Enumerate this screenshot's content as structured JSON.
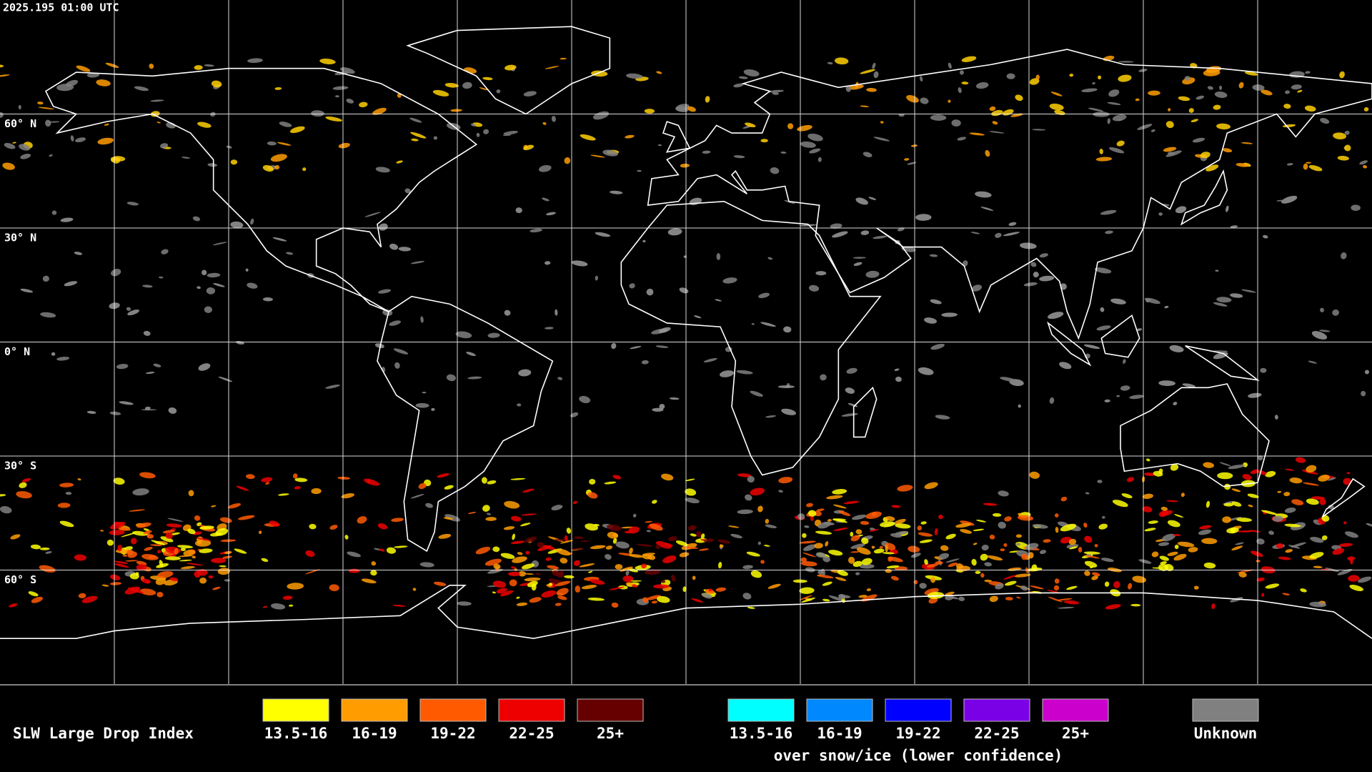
{
  "header": {
    "timestamp": "2025.195 01:00 UTC"
  },
  "map": {
    "latitude_labels": [
      "60° N",
      "30° N",
      "0° N",
      "30° S",
      "60° S"
    ]
  },
  "legend": {
    "title": "SLW Large Drop Index",
    "groups": [
      {
        "items": [
          {
            "label": "13.5-16",
            "color": "#ffff00"
          },
          {
            "label": "16-19",
            "color": "#ff9c00"
          },
          {
            "label": "19-22",
            "color": "#ff5a00"
          },
          {
            "label": "22-25",
            "color": "#ee0000"
          },
          {
            "label": "25+",
            "color": "#660000"
          }
        ]
      },
      {
        "items": [
          {
            "label": "13.5-16",
            "color": "#00ffff"
          },
          {
            "label": "16-19",
            "color": "#0088ff"
          },
          {
            "label": "19-22",
            "color": "#0000ff"
          },
          {
            "label": "22-25",
            "color": "#7a00e6"
          },
          {
            "label": "25+",
            "color": "#cc00cc"
          }
        ],
        "caption": "over snow/ice (lower confidence)"
      },
      {
        "items": [
          {
            "label": "Unknown",
            "color": "#808080"
          }
        ]
      }
    ]
  }
}
